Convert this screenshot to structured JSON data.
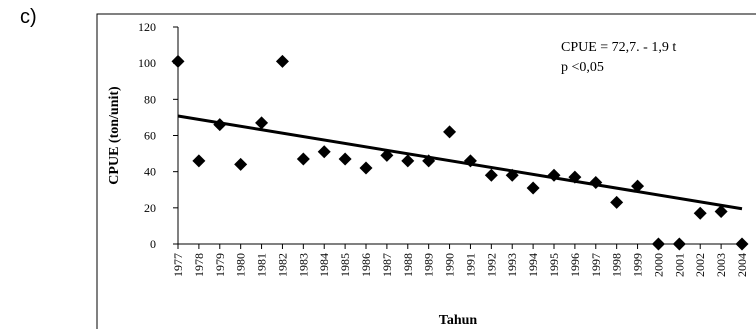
{
  "panel_label": "c)",
  "chart_data": {
    "type": "scatter",
    "title": "",
    "xlabel": "Tahun",
    "ylabel": "CPUE (ton/unit)",
    "ylim": [
      0,
      120
    ],
    "yticks": [
      0,
      20,
      40,
      60,
      80,
      100,
      120
    ],
    "grid": false,
    "categories": [
      "1977",
      "1978",
      "1979",
      "1980",
      "1981",
      "1982",
      "1983",
      "1984",
      "1985",
      "1986",
      "1987",
      "1988",
      "1989",
      "1990",
      "1991",
      "1992",
      "1993",
      "1994",
      "1995",
      "1996",
      "1997",
      "1998",
      "1999",
      "2000",
      "2001",
      "2002",
      "2003",
      "2004"
    ],
    "series": [
      {
        "name": "",
        "marker": "diamond",
        "color": "#000000",
        "values": [
          101,
          46,
          66,
          44,
          67,
          101,
          47,
          51,
          47,
          42,
          49,
          46,
          46,
          62,
          46,
          38,
          38,
          31,
          38,
          37,
          34,
          23,
          32,
          0,
          0,
          17,
          18,
          0
        ]
      }
    ],
    "trendline": {
      "intercept": 72.7,
      "slope": -1.9,
      "color": "#000000"
    },
    "annotations": [
      "CPUE = 72,7. - 1,9 t",
      "p <0,05"
    ]
  }
}
